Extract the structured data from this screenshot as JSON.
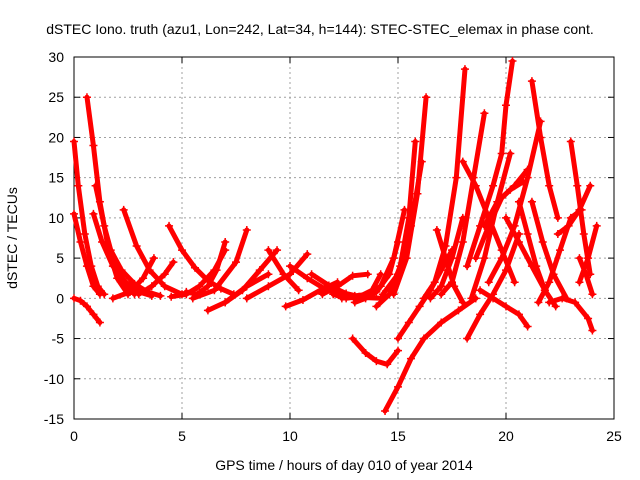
{
  "chart_data": {
    "type": "scatter",
    "title": "dSTEC Iono. truth (azu1, Lon=242, Lat=34, h=144): STEC-STEC_elemax in phase cont.",
    "xlabel": "GPS time / hours of day 010 of year 2014",
    "ylabel": "dSTEC  / TECUs",
    "xlim": [
      0,
      25
    ],
    "ylim": [
      -15,
      30
    ],
    "xticks": [
      0,
      5,
      10,
      15,
      20,
      25
    ],
    "yticks": [
      -15,
      -10,
      -5,
      0,
      5,
      10,
      15,
      20,
      25,
      30
    ],
    "grid": true,
    "marker": "+",
    "color": "#ff0000",
    "series": [
      {
        "x": [
          0.0,
          0.3,
          0.6,
          0.9,
          1.2
        ],
        "y": [
          0.0,
          -0.3,
          -1.0,
          -2.0,
          -3.0
        ]
      },
      {
        "x": [
          0.0,
          0.2,
          0.5,
          0.8,
          1.1,
          1.4
        ],
        "y": [
          19.5,
          14.0,
          8.0,
          4.0,
          1.5,
          0.5
        ]
      },
      {
        "x": [
          0.0,
          0.3,
          0.6,
          0.9,
          1.2
        ],
        "y": [
          10.5,
          7.0,
          4.0,
          1.5,
          0.5
        ]
      },
      {
        "x": [
          0.6,
          0.9,
          1.2,
          1.6,
          2.0,
          2.5
        ],
        "y": [
          25.0,
          19.0,
          12.0,
          6.0,
          2.5,
          0.5
        ]
      },
      {
        "x": [
          1.0,
          1.4,
          1.8,
          2.3,
          2.8
        ],
        "y": [
          14.0,
          9.0,
          5.0,
          2.0,
          0.5
        ]
      },
      {
        "x": [
          0.9,
          1.3,
          1.8,
          2.4,
          3.0,
          3.6
        ],
        "y": [
          10.5,
          7.0,
          4.0,
          2.0,
          0.8,
          0.3
        ]
      },
      {
        "x": [
          1.7,
          2.2,
          2.8,
          3.4,
          4.0
        ],
        "y": [
          6.0,
          3.5,
          1.8,
          0.8,
          0.3
        ]
      },
      {
        "x": [
          2.3,
          2.9,
          3.5,
          4.2,
          5.0
        ],
        "y": [
          11.0,
          6.5,
          3.5,
          1.5,
          0.5
        ]
      },
      {
        "x": [
          1.8,
          2.6,
          3.2,
          3.7
        ],
        "y": [
          0.0,
          0.8,
          2.5,
          5.0
        ]
      },
      {
        "x": [
          3.0,
          3.6,
          4.2,
          4.6
        ],
        "y": [
          0.5,
          1.5,
          3.0,
          4.5
        ]
      },
      {
        "x": [
          4.4,
          5.0,
          5.6,
          6.2,
          6.8,
          7.4
        ],
        "y": [
          9.0,
          6.0,
          3.8,
          2.2,
          1.2,
          0.5
        ]
      },
      {
        "x": [
          4.5,
          5.2,
          5.8,
          6.5,
          7.0
        ],
        "y": [
          0.2,
          0.5,
          1.5,
          3.5,
          6.0
        ]
      },
      {
        "x": [
          5.2,
          5.7,
          6.2,
          6.6,
          7.0
        ],
        "y": [
          0.8,
          0.5,
          1.5,
          3.5,
          7.0
        ]
      },
      {
        "x": [
          5.5,
          6.5,
          7.5,
          8.0
        ],
        "y": [
          0.0,
          1.0,
          4.5,
          8.5
        ]
      },
      {
        "x": [
          6.2,
          7.0,
          8.0,
          9.0
        ],
        "y": [
          -1.5,
          -0.5,
          1.5,
          3.0
        ]
      },
      {
        "x": [
          7.0,
          7.8,
          8.6,
          9.4
        ],
        "y": [
          -0.5,
          1.0,
          3.5,
          6.0
        ]
      },
      {
        "x": [
          8.0,
          9.0,
          10.0,
          10.8
        ],
        "y": [
          0.0,
          1.5,
          3.0,
          5.5
        ]
      },
      {
        "x": [
          9.0,
          9.7,
          10.4
        ],
        "y": [
          6.0,
          3.0,
          1.0
        ]
      },
      {
        "x": [
          9.8,
          10.6,
          11.4,
          12.2
        ],
        "y": [
          -1.0,
          -0.2,
          1.0,
          2.0
        ]
      },
      {
        "x": [
          10.0,
          10.8,
          11.6,
          12.4,
          13.0
        ],
        "y": [
          4.0,
          2.5,
          1.2,
          0.4,
          0.0
        ]
      },
      {
        "x": [
          11.0,
          11.8,
          12.6,
          13.4,
          14.2
        ],
        "y": [
          3.0,
          1.6,
          0.6,
          0.1,
          0.0
        ]
      },
      {
        "x": [
          11.5,
          12.2,
          12.9,
          13.6
        ],
        "y": [
          0.5,
          1.5,
          2.8,
          3.0
        ]
      },
      {
        "x": [
          12.0,
          12.6,
          13.2,
          13.8,
          14.2
        ],
        "y": [
          0.5,
          0.0,
          0.2,
          1.0,
          3.0
        ]
      },
      {
        "x": [
          12.4,
          13.0,
          13.6,
          14.2,
          14.8,
          15.3
        ],
        "y": [
          0.0,
          0.3,
          0.5,
          1.5,
          5.0,
          11.0
        ]
      },
      {
        "x": [
          13.0,
          13.5,
          14.0,
          14.6,
          15.0
        ],
        "y": [
          -0.5,
          0.0,
          0.8,
          3.0,
          7.0
        ]
      },
      {
        "x": [
          12.9,
          13.5,
          14.0,
          14.5,
          15.0
        ],
        "y": [
          -5.0,
          -6.8,
          -7.8,
          -8.2,
          -6.5
        ]
      },
      {
        "x": [
          14.0,
          14.6,
          15.1,
          15.5,
          15.8
        ],
        "y": [
          -1.0,
          0.5,
          4.0,
          10.0,
          19.5
        ]
      },
      {
        "x": [
          14.3,
          15.0,
          15.6,
          16.1
        ],
        "y": [
          0.5,
          3.0,
          9.0,
          17.0
        ]
      },
      {
        "x": [
          14.8,
          15.4,
          15.9,
          16.3
        ],
        "y": [
          0.5,
          5.0,
          13.0,
          25.0
        ]
      },
      {
        "x": [
          14.4,
          15.0,
          15.6,
          16.2,
          17.0,
          17.8,
          18.6
        ],
        "y": [
          -14.0,
          -11.0,
          -7.5,
          -5.0,
          -3.0,
          -1.5,
          0.0
        ]
      },
      {
        "x": [
          15.0,
          15.5,
          16.0,
          16.5,
          17.0,
          17.5
        ],
        "y": [
          -5.0,
          -3.0,
          -1.0,
          1.0,
          3.5,
          6.0
        ]
      },
      {
        "x": [
          16.2,
          16.7,
          17.2,
          17.7,
          18.1
        ],
        "y": [
          0.0,
          2.0,
          6.5,
          15.0,
          28.5
        ]
      },
      {
        "x": [
          16.5,
          17.0,
          17.5,
          18.0
        ],
        "y": [
          0.0,
          1.5,
          5.0,
          10.0
        ]
      },
      {
        "x": [
          17.0,
          17.5,
          18.0,
          18.5,
          19.0
        ],
        "y": [
          0.5,
          2.0,
          7.0,
          15.0,
          23.0
        ]
      },
      {
        "x": [
          16.8,
          17.2,
          17.6,
          18.0
        ],
        "y": [
          8.5,
          5.0,
          1.5,
          -0.5
        ]
      },
      {
        "x": [
          18.2,
          18.8,
          19.4,
          19.8,
          20.0,
          20.3
        ],
        "y": [
          4.0,
          9.0,
          14.0,
          18.0,
          24.0,
          29.5
        ]
      },
      {
        "x": [
          18.2,
          18.8,
          19.4,
          20.0,
          20.6
        ],
        "y": [
          -5.0,
          -2.0,
          0.5,
          3.5,
          8.0
        ]
      },
      {
        "x": [
          18.4,
          19.0,
          19.6,
          20.2
        ],
        "y": [
          0.0,
          5.0,
          12.0,
          18.0
        ]
      },
      {
        "x": [
          18.6,
          19.2,
          19.8,
          20.4,
          21.0
        ],
        "y": [
          5.0,
          9.0,
          12.5,
          14.0,
          16.0
        ]
      },
      {
        "x": [
          19.0,
          19.6,
          20.2,
          20.8
        ],
        "y": [
          9.0,
          12.0,
          13.5,
          14.5
        ]
      },
      {
        "x": [
          18.0,
          18.6,
          19.2,
          19.8,
          20.4
        ],
        "y": [
          17.0,
          14.0,
          10.0,
          6.0,
          2.0
        ]
      },
      {
        "x": [
          18.8,
          19.4,
          20.0,
          20.6,
          21.0
        ],
        "y": [
          1.0,
          0.0,
          -1.0,
          -2.0,
          -3.5
        ]
      },
      {
        "x": [
          19.2,
          19.8,
          20.4,
          21.0,
          21.6
        ],
        "y": [
          2.0,
          5.0,
          9.0,
          15.0,
          22.0
        ]
      },
      {
        "x": [
          20.6,
          21.0,
          21.4,
          21.8,
          22.3
        ],
        "y": [
          12.0,
          8.0,
          4.0,
          1.0,
          -1.0
        ]
      },
      {
        "x": [
          20.0,
          20.6,
          21.2,
          21.8
        ],
        "y": [
          10.0,
          7.0,
          4.0,
          1.0
        ]
      },
      {
        "x": [
          21.2,
          21.6,
          22.0,
          22.4
        ],
        "y": [
          27.0,
          20.0,
          14.0,
          10.0
        ]
      },
      {
        "x": [
          21.2,
          21.7,
          22.2,
          22.8
        ],
        "y": [
          12.0,
          7.0,
          3.0,
          0.0
        ]
      },
      {
        "x": [
          21.5,
          22.0,
          22.5,
          23.0,
          23.5
        ],
        "y": [
          -0.5,
          2.0,
          6.0,
          10.0,
          11.0
        ]
      },
      {
        "x": [
          22.0,
          22.6,
          23.2,
          23.8,
          24.0
        ],
        "y": [
          -0.5,
          0.0,
          -0.5,
          -2.5,
          -4.0
        ]
      },
      {
        "x": [
          22.4,
          22.9,
          23.4,
          23.9
        ],
        "y": [
          8.0,
          9.0,
          11.0,
          14.0
        ]
      },
      {
        "x": [
          23.0,
          23.3,
          23.6,
          23.9
        ],
        "y": [
          19.5,
          14.0,
          8.0,
          3.0
        ]
      },
      {
        "x": [
          23.4,
          23.7,
          24.0
        ],
        "y": [
          5.0,
          3.0,
          0.5
        ]
      },
      {
        "x": [
          23.4,
          23.8,
          24.2
        ],
        "y": [
          2.0,
          5.0,
          9.0
        ]
      }
    ]
  }
}
